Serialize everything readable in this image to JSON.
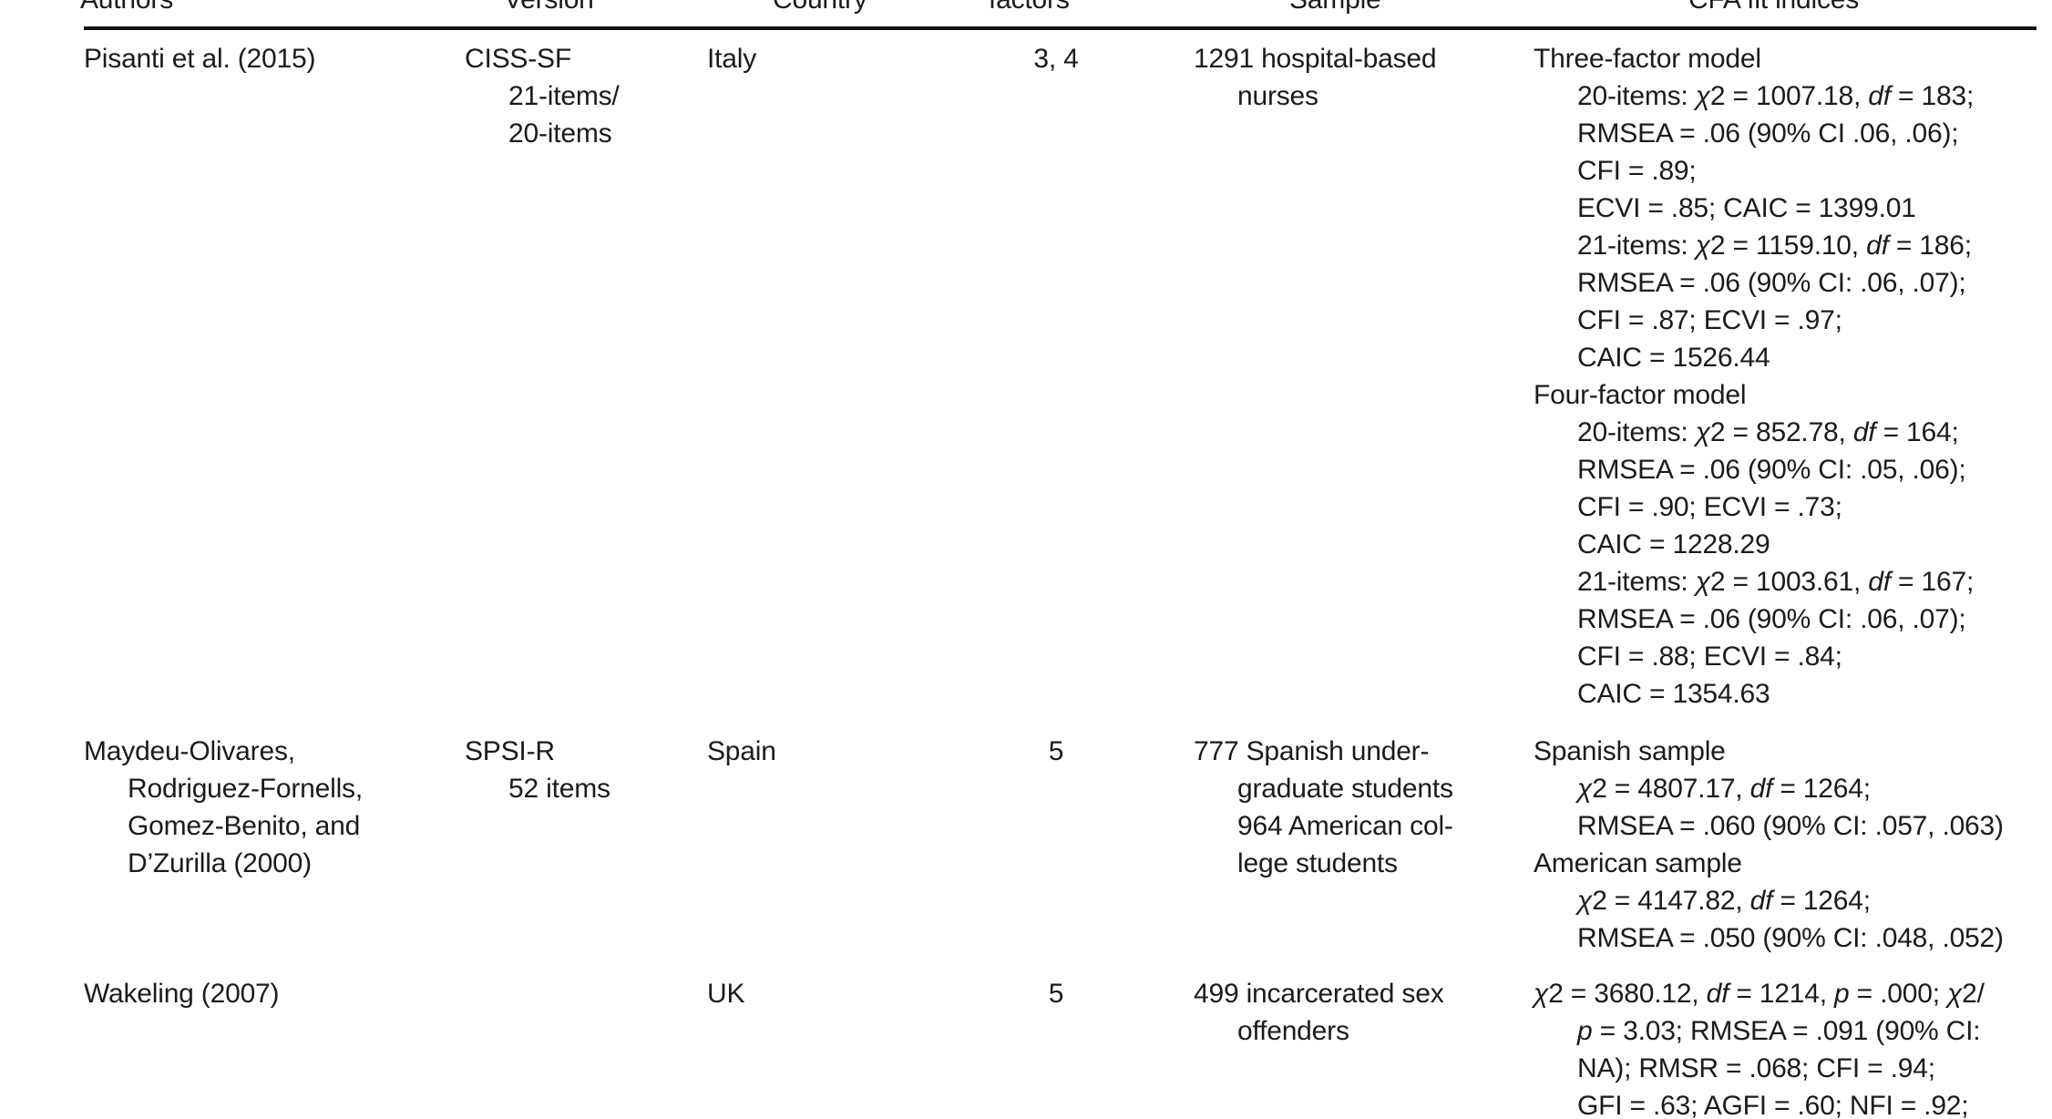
{
  "table": {
    "header": {
      "columns": [
        {
          "label": "Authors"
        },
        {
          "label": "Version"
        },
        {
          "label": "Country"
        },
        {
          "label": "factors"
        },
        {
          "label": "Sample"
        },
        {
          "label": "CFA fit indices"
        }
      ]
    },
    "rows": [
      {
        "authors": [
          {
            "ind": 0,
            "seg": [
              "Pisanti et al. (2015)"
            ]
          }
        ],
        "version": [
          {
            "ind": 0,
            "seg": [
              "CISS-SF"
            ]
          },
          {
            "ind": 1,
            "seg": [
              "21-items/"
            ]
          },
          {
            "ind": 1,
            "seg": [
              "20-items"
            ]
          }
        ],
        "country": "Italy",
        "factors": "3, 4",
        "sample": [
          {
            "ind": 0,
            "seg": [
              "1291 hospital-based"
            ]
          },
          {
            "ind": 1,
            "seg": [
              "nurses"
            ]
          }
        ],
        "cfa": [
          {
            "ind": 0,
            "seg": [
              "Three-factor model"
            ]
          },
          {
            "ind": 1,
            "seg": [
              "20-items: ",
              {
                "i": "χ"
              },
              "2 = 1007.18, ",
              {
                "i": "df"
              },
              " = 183;"
            ]
          },
          {
            "ind": 1,
            "seg": [
              "RMSEA = .06 (90% CI .06, .06);"
            ]
          },
          {
            "ind": 1,
            "seg": [
              "CFI = .89;"
            ]
          },
          {
            "ind": 1,
            "seg": [
              "ECVI = .85; CAIC = 1399.01"
            ]
          },
          {
            "ind": 1,
            "seg": [
              "21-items: ",
              {
                "i": "χ"
              },
              "2 = 1159.10, ",
              {
                "i": "df"
              },
              " = 186;"
            ]
          },
          {
            "ind": 1,
            "seg": [
              "RMSEA = .06 (90% CI: .06, .07);"
            ]
          },
          {
            "ind": 1,
            "seg": [
              "CFI = .87; ECVI = .97;"
            ]
          },
          {
            "ind": 1,
            "seg": [
              "CAIC = 1526.44"
            ]
          },
          {
            "ind": 0,
            "seg": [
              "Four-factor model"
            ]
          },
          {
            "ind": 1,
            "seg": [
              "20-items: ",
              {
                "i": "χ"
              },
              "2 = 852.78, ",
              {
                "i": "df"
              },
              " = 164;"
            ]
          },
          {
            "ind": 1,
            "seg": [
              "RMSEA = .06 (90% CI: .05, .06);"
            ]
          },
          {
            "ind": 1,
            "seg": [
              "CFI = .90; ECVI = .73;"
            ]
          },
          {
            "ind": 1,
            "seg": [
              "CAIC = 1228.29"
            ]
          },
          {
            "ind": 1,
            "seg": [
              "21-items: ",
              {
                "i": "χ"
              },
              "2 = 1003.61, ",
              {
                "i": "df"
              },
              " = 167;"
            ]
          },
          {
            "ind": 1,
            "seg": [
              "RMSEA = .06 (90% CI: .06, .07);"
            ]
          },
          {
            "ind": 1,
            "seg": [
              "CFI = .88; ECVI = .84;"
            ]
          },
          {
            "ind": 1,
            "seg": [
              "CAIC = 1354.63"
            ]
          }
        ]
      },
      {
        "authors": [
          {
            "ind": 0,
            "seg": [
              "Maydeu-Olivares,"
            ]
          },
          {
            "ind": 1,
            "seg": [
              "Rodriguez-Fornells,"
            ]
          },
          {
            "ind": 1,
            "seg": [
              "Gomez-Benito, and"
            ]
          },
          {
            "ind": 1,
            "seg": [
              "D’Zurilla (2000)"
            ]
          }
        ],
        "version": [
          {
            "ind": 0,
            "seg": [
              "SPSI-R"
            ]
          },
          {
            "ind": 1,
            "seg": [
              "52 items"
            ]
          }
        ],
        "country": "Spain",
        "factors": "5",
        "sample": [
          {
            "ind": 0,
            "seg": [
              "777 Spanish under-"
            ]
          },
          {
            "ind": 1,
            "seg": [
              "graduate students"
            ]
          },
          {
            "ind": 1,
            "seg": [
              "964 American col-"
            ]
          },
          {
            "ind": 1,
            "seg": [
              "lege students"
            ]
          }
        ],
        "cfa": [
          {
            "ind": 0,
            "seg": [
              "Spanish sample"
            ]
          },
          {
            "ind": 1,
            "seg": [
              {
                "i": "χ"
              },
              "2 = 4807.17, ",
              {
                "i": "df"
              },
              " = 1264;"
            ]
          },
          {
            "ind": 1,
            "seg": [
              "RMSEA = .060 (90% CI: .057, .063)"
            ]
          },
          {
            "ind": 0,
            "seg": [
              "American sample"
            ]
          },
          {
            "ind": 1,
            "seg": [
              {
                "i": "χ"
              },
              "2 = 4147.82, ",
              {
                "i": "df"
              },
              " = 1264;"
            ]
          },
          {
            "ind": 1,
            "seg": [
              "RMSEA = .050 (90% CI: .048, .052)"
            ]
          }
        ]
      },
      {
        "authors": [
          {
            "ind": 0,
            "seg": [
              "Wakeling (2007)"
            ]
          }
        ],
        "version": [],
        "country": "UK",
        "factors": "5",
        "sample": [
          {
            "ind": 0,
            "seg": [
              "499 incarcerated sex"
            ]
          },
          {
            "ind": 1,
            "seg": [
              "offenders"
            ]
          }
        ],
        "cfa": [
          {
            "ind": 0,
            "seg": [
              {
                "i": "χ"
              },
              "2 = 3680.12, ",
              {
                "i": "df"
              },
              " = 1214, ",
              {
                "i": "p"
              },
              " = .000; ",
              {
                "i": "χ"
              },
              "2/"
            ]
          },
          {
            "ind": 1,
            "seg": [
              {
                "i": "p"
              },
              " = 3.03; RMSEA = .091 (90% CI:"
            ]
          },
          {
            "ind": 1,
            "seg": [
              "NA); RMSR = .068; CFI = .94;"
            ]
          },
          {
            "ind": 1,
            "seg": [
              "GFI = .63; AGFI = .60; NFI = .92;"
            ]
          }
        ]
      }
    ]
  },
  "colors": {
    "background": "#ffffff",
    "text": "#1b1b1b",
    "rule": "#141414"
  }
}
